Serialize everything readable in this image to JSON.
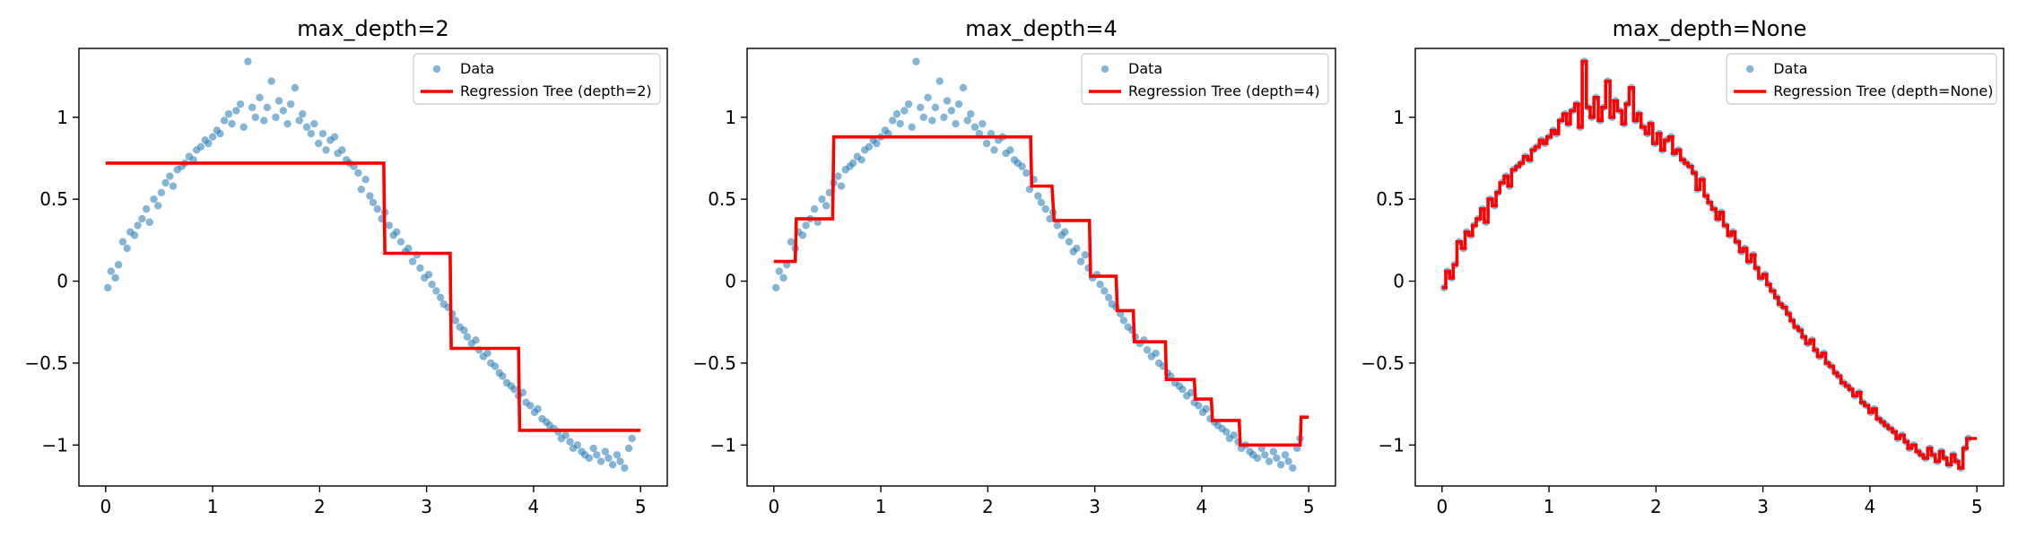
{
  "chart_data": [
    {
      "type": "scatter",
      "title": "max_depth=2",
      "xlim": [
        -0.25,
        5.25
      ],
      "ylim": [
        -1.25,
        1.42
      ],
      "xticks": [
        0,
        1,
        2,
        3,
        4,
        5
      ],
      "yticks": [
        -1.0,
        -0.5,
        0.0,
        0.5,
        1.0
      ],
      "legend_position": "top-right",
      "colors": {
        "data": "#1f77b4",
        "line": "#ff0000"
      },
      "series": [
        {
          "name": "Data",
          "kind": "scatter",
          "x": [
            0.02,
            0.05,
            0.09,
            0.12,
            0.16,
            0.2,
            0.23,
            0.27,
            0.3,
            0.34,
            0.38,
            0.41,
            0.45,
            0.49,
            0.52,
            0.56,
            0.6,
            0.63,
            0.67,
            0.71,
            0.74,
            0.78,
            0.82,
            0.85,
            0.89,
            0.93,
            0.96,
            1.0,
            1.04,
            1.07,
            1.11,
            1.15,
            1.18,
            1.22,
            1.26,
            1.29,
            1.33,
            1.37,
            1.4,
            1.44,
            1.48,
            1.51,
            1.55,
            1.59,
            1.62,
            1.66,
            1.7,
            1.73,
            1.77,
            1.81,
            1.84,
            1.88,
            1.92,
            1.95,
            1.99,
            2.03,
            2.06,
            2.1,
            2.14,
            2.17,
            2.21,
            2.25,
            2.28,
            2.32,
            2.36,
            2.39,
            2.43,
            2.47,
            2.5,
            2.54,
            2.58,
            2.61,
            2.65,
            2.69,
            2.72,
            2.76,
            2.8,
            2.83,
            2.87,
            2.91,
            2.94,
            2.98,
            3.02,
            3.05,
            3.09,
            3.13,
            3.16,
            3.2,
            3.24,
            3.27,
            3.31,
            3.35,
            3.38,
            3.42,
            3.46,
            3.49,
            3.53,
            3.57,
            3.6,
            3.64,
            3.68,
            3.71,
            3.75,
            3.79,
            3.82,
            3.86,
            3.9,
            3.93,
            3.97,
            4.01,
            4.04,
            4.08,
            4.12,
            4.15,
            4.19,
            4.23,
            4.26,
            4.3,
            4.34,
            4.37,
            4.41,
            4.45,
            4.48,
            4.52,
            4.56,
            4.59,
            4.63,
            4.67,
            4.7,
            4.74,
            4.78,
            4.81,
            4.85,
            4.89,
            4.92
          ],
          "y": [
            -0.04,
            0.06,
            0.02,
            0.1,
            0.24,
            0.2,
            0.3,
            0.28,
            0.34,
            0.38,
            0.44,
            0.36,
            0.5,
            0.46,
            0.54,
            0.6,
            0.64,
            0.58,
            0.68,
            0.7,
            0.72,
            0.76,
            0.74,
            0.8,
            0.82,
            0.86,
            0.84,
            0.88,
            0.92,
            0.9,
            0.98,
            1.02,
            0.96,
            1.04,
            1.08,
            0.94,
            1.34,
            1.06,
            1.0,
            1.12,
            0.98,
            1.06,
            1.22,
            1.0,
            1.1,
            1.04,
            0.96,
            1.08,
            1.18,
            0.98,
            1.02,
            0.94,
            0.9,
            0.96,
            0.84,
            0.9,
            0.8,
            0.86,
            0.88,
            0.78,
            0.8,
            0.74,
            0.72,
            0.7,
            0.66,
            0.56,
            0.62,
            0.52,
            0.48,
            0.44,
            0.38,
            0.42,
            0.34,
            0.28,
            0.3,
            0.24,
            0.18,
            0.2,
            0.12,
            0.16,
            0.08,
            0.02,
            0.04,
            -0.02,
            -0.06,
            -0.1,
            -0.14,
            -0.16,
            -0.2,
            -0.24,
            -0.28,
            -0.3,
            -0.34,
            -0.38,
            -0.36,
            -0.42,
            -0.46,
            -0.44,
            -0.5,
            -0.52,
            -0.56,
            -0.58,
            -0.62,
            -0.64,
            -0.66,
            -0.7,
            -0.68,
            -0.74,
            -0.76,
            -0.8,
            -0.78,
            -0.84,
            -0.86,
            -0.88,
            -0.9,
            -0.92,
            -0.96,
            -0.94,
            -0.98,
            -1.02,
            -1.0,
            -1.04,
            -1.06,
            -1.08,
            -1.02,
            -1.06,
            -1.1,
            -1.04,
            -1.08,
            -1.12,
            -1.06,
            -1.1,
            -1.14,
            -1.02,
            -0.96
          ]
        },
        {
          "name": "Regression Tree (depth=2)",
          "kind": "step",
          "x": [
            0,
            0.02,
            2.6,
            2.61,
            3.22,
            3.23,
            3.86,
            3.87,
            4.98,
            5.0
          ],
          "y": [
            0.72,
            0.72,
            0.72,
            0.17,
            0.17,
            -0.41,
            -0.41,
            -0.91,
            -0.91,
            -0.91
          ]
        }
      ]
    },
    {
      "type": "scatter",
      "title": "max_depth=4",
      "xlim": [
        -0.25,
        5.25
      ],
      "ylim": [
        -1.25,
        1.42
      ],
      "xticks": [
        0,
        1,
        2,
        3,
        4,
        5
      ],
      "yticks": [
        -1.0,
        -0.5,
        0.0,
        0.5,
        1.0
      ],
      "legend_position": "top-right",
      "colors": {
        "data": "#1f77b4",
        "line": "#ff0000"
      },
      "series": [
        {
          "name": "Data",
          "kind": "scatter",
          "x": [
            0.02,
            0.05,
            0.09,
            0.12,
            0.16,
            0.2,
            0.23,
            0.27,
            0.3,
            0.34,
            0.38,
            0.41,
            0.45,
            0.49,
            0.52,
            0.56,
            0.6,
            0.63,
            0.67,
            0.71,
            0.74,
            0.78,
            0.82,
            0.85,
            0.89,
            0.93,
            0.96,
            1.0,
            1.04,
            1.07,
            1.11,
            1.15,
            1.18,
            1.22,
            1.26,
            1.29,
            1.33,
            1.37,
            1.4,
            1.44,
            1.48,
            1.51,
            1.55,
            1.59,
            1.62,
            1.66,
            1.7,
            1.73,
            1.77,
            1.81,
            1.84,
            1.88,
            1.92,
            1.95,
            1.99,
            2.03,
            2.06,
            2.1,
            2.14,
            2.17,
            2.21,
            2.25,
            2.28,
            2.32,
            2.36,
            2.39,
            2.43,
            2.47,
            2.5,
            2.54,
            2.58,
            2.61,
            2.65,
            2.69,
            2.72,
            2.76,
            2.8,
            2.83,
            2.87,
            2.91,
            2.94,
            2.98,
            3.02,
            3.05,
            3.09,
            3.13,
            3.16,
            3.2,
            3.24,
            3.27,
            3.31,
            3.35,
            3.38,
            3.42,
            3.46,
            3.49,
            3.53,
            3.57,
            3.6,
            3.64,
            3.68,
            3.71,
            3.75,
            3.79,
            3.82,
            3.86,
            3.9,
            3.93,
            3.97,
            4.01,
            4.04,
            4.08,
            4.12,
            4.15,
            4.19,
            4.23,
            4.26,
            4.3,
            4.34,
            4.37,
            4.41,
            4.45,
            4.48,
            4.52,
            4.56,
            4.59,
            4.63,
            4.67,
            4.7,
            4.74,
            4.78,
            4.81,
            4.85,
            4.89,
            4.92
          ],
          "y": [
            -0.04,
            0.06,
            0.02,
            0.1,
            0.24,
            0.2,
            0.3,
            0.28,
            0.34,
            0.38,
            0.44,
            0.36,
            0.5,
            0.46,
            0.54,
            0.6,
            0.64,
            0.58,
            0.68,
            0.7,
            0.72,
            0.76,
            0.74,
            0.8,
            0.82,
            0.86,
            0.84,
            0.88,
            0.92,
            0.9,
            0.98,
            1.02,
            0.96,
            1.04,
            1.08,
            0.94,
            1.34,
            1.06,
            1.0,
            1.12,
            0.98,
            1.06,
            1.22,
            1.0,
            1.1,
            1.04,
            0.96,
            1.08,
            1.18,
            0.98,
            1.02,
            0.94,
            0.9,
            0.96,
            0.84,
            0.9,
            0.8,
            0.86,
            0.88,
            0.78,
            0.8,
            0.74,
            0.72,
            0.7,
            0.66,
            0.56,
            0.62,
            0.52,
            0.48,
            0.44,
            0.38,
            0.42,
            0.34,
            0.28,
            0.3,
            0.24,
            0.18,
            0.2,
            0.12,
            0.16,
            0.08,
            0.02,
            0.04,
            -0.02,
            -0.06,
            -0.1,
            -0.14,
            -0.16,
            -0.2,
            -0.24,
            -0.28,
            -0.3,
            -0.34,
            -0.38,
            -0.36,
            -0.42,
            -0.46,
            -0.44,
            -0.5,
            -0.52,
            -0.56,
            -0.58,
            -0.62,
            -0.64,
            -0.66,
            -0.7,
            -0.68,
            -0.74,
            -0.76,
            -0.8,
            -0.78,
            -0.84,
            -0.86,
            -0.88,
            -0.9,
            -0.92,
            -0.96,
            -0.94,
            -0.98,
            -1.02,
            -1.0,
            -1.04,
            -1.06,
            -1.08,
            -1.02,
            -1.06,
            -1.1,
            -1.04,
            -1.08,
            -1.12,
            -1.06,
            -1.1,
            -1.14,
            -1.02,
            -0.96
          ]
        },
        {
          "name": "Regression Tree (depth=4)",
          "kind": "step",
          "x": [
            0,
            0.2,
            0.21,
            0.55,
            0.56,
            2.4,
            2.41,
            2.6,
            2.62,
            2.95,
            2.96,
            3.2,
            3.21,
            3.36,
            3.37,
            3.66,
            3.67,
            3.93,
            3.94,
            4.09,
            4.1,
            4.35,
            4.36,
            4.92,
            4.93,
            5.0
          ],
          "y": [
            0.12,
            0.12,
            0.38,
            0.38,
            0.88,
            0.88,
            0.58,
            0.58,
            0.37,
            0.37,
            0.03,
            0.03,
            -0.18,
            -0.18,
            -0.37,
            -0.37,
            -0.6,
            -0.6,
            -0.72,
            -0.72,
            -0.85,
            -0.85,
            -1.0,
            -1.0,
            -0.83,
            -0.83
          ]
        }
      ]
    },
    {
      "type": "scatter",
      "title": "max_depth=None",
      "xlim": [
        -0.25,
        5.25
      ],
      "ylim": [
        -1.25,
        1.42
      ],
      "xticks": [
        0,
        1,
        2,
        3,
        4,
        5
      ],
      "yticks": [
        -1.0,
        -0.5,
        0.0,
        0.5,
        1.0
      ],
      "legend_position": "top-right",
      "colors": {
        "data": "#1f77b4",
        "line": "#ff0000"
      },
      "series": [
        {
          "name": "Data",
          "kind": "scatter",
          "x": [
            0.02,
            0.05,
            0.09,
            0.12,
            0.16,
            0.2,
            0.23,
            0.27,
            0.3,
            0.34,
            0.38,
            0.41,
            0.45,
            0.49,
            0.52,
            0.56,
            0.6,
            0.63,
            0.67,
            0.71,
            0.74,
            0.78,
            0.82,
            0.85,
            0.89,
            0.93,
            0.96,
            1.0,
            1.04,
            1.07,
            1.11,
            1.15,
            1.18,
            1.22,
            1.26,
            1.29,
            1.33,
            1.37,
            1.4,
            1.44,
            1.48,
            1.51,
            1.55,
            1.59,
            1.62,
            1.66,
            1.7,
            1.73,
            1.77,
            1.81,
            1.84,
            1.88,
            1.92,
            1.95,
            1.99,
            2.03,
            2.06,
            2.1,
            2.14,
            2.17,
            2.21,
            2.25,
            2.28,
            2.32,
            2.36,
            2.39,
            2.43,
            2.47,
            2.5,
            2.54,
            2.58,
            2.61,
            2.65,
            2.69,
            2.72,
            2.76,
            2.8,
            2.83,
            2.87,
            2.91,
            2.94,
            2.98,
            3.02,
            3.05,
            3.09,
            3.13,
            3.16,
            3.2,
            3.24,
            3.27,
            3.31,
            3.35,
            3.38,
            3.42,
            3.46,
            3.49,
            3.53,
            3.57,
            3.6,
            3.64,
            3.68,
            3.71,
            3.75,
            3.79,
            3.82,
            3.86,
            3.9,
            3.93,
            3.97,
            4.01,
            4.04,
            4.08,
            4.12,
            4.15,
            4.19,
            4.23,
            4.26,
            4.3,
            4.34,
            4.37,
            4.41,
            4.45,
            4.48,
            4.52,
            4.56,
            4.59,
            4.63,
            4.67,
            4.7,
            4.74,
            4.78,
            4.81,
            4.85,
            4.89,
            4.92
          ],
          "y": [
            -0.04,
            0.06,
            0.02,
            0.1,
            0.24,
            0.2,
            0.3,
            0.28,
            0.34,
            0.38,
            0.44,
            0.36,
            0.5,
            0.46,
            0.54,
            0.6,
            0.64,
            0.58,
            0.68,
            0.7,
            0.72,
            0.76,
            0.74,
            0.8,
            0.82,
            0.86,
            0.84,
            0.88,
            0.92,
            0.9,
            0.98,
            1.02,
            0.96,
            1.04,
            1.08,
            0.94,
            1.34,
            1.06,
            1.0,
            1.12,
            0.98,
            1.06,
            1.22,
            1.0,
            1.1,
            1.04,
            0.96,
            1.08,
            1.18,
            0.98,
            1.02,
            0.94,
            0.9,
            0.96,
            0.84,
            0.9,
            0.8,
            0.86,
            0.88,
            0.78,
            0.8,
            0.74,
            0.72,
            0.7,
            0.66,
            0.56,
            0.62,
            0.52,
            0.48,
            0.44,
            0.38,
            0.42,
            0.34,
            0.28,
            0.3,
            0.24,
            0.18,
            0.2,
            0.12,
            0.16,
            0.08,
            0.02,
            0.04,
            -0.02,
            -0.06,
            -0.1,
            -0.14,
            -0.16,
            -0.2,
            -0.24,
            -0.28,
            -0.3,
            -0.34,
            -0.38,
            -0.36,
            -0.42,
            -0.46,
            -0.44,
            -0.5,
            -0.52,
            -0.56,
            -0.58,
            -0.62,
            -0.64,
            -0.66,
            -0.7,
            -0.68,
            -0.74,
            -0.76,
            -0.8,
            -0.78,
            -0.84,
            -0.86,
            -0.88,
            -0.9,
            -0.92,
            -0.96,
            -0.94,
            -0.98,
            -1.02,
            -1.0,
            -1.04,
            -1.06,
            -1.08,
            -1.02,
            -1.06,
            -1.1,
            -1.04,
            -1.08,
            -1.12,
            -1.06,
            -1.1,
            -1.14,
            -1.02,
            -0.96
          ]
        },
        {
          "name": "Regression Tree (depth=None)",
          "kind": "step-through-data"
        }
      ]
    }
  ]
}
